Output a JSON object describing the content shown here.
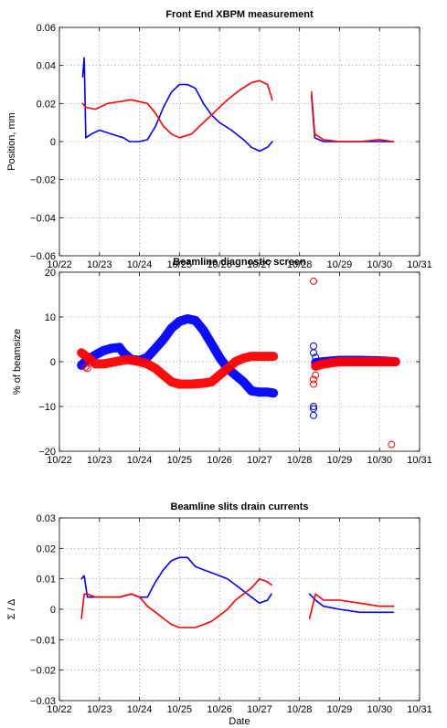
{
  "chart_data": [
    {
      "type": "line",
      "title": "Front End XBPM measurement",
      "xlabel": "",
      "ylabel": "Position, mm",
      "ylim": [
        -0.06,
        0.06
      ],
      "yticks": [
        -0.06,
        -0.04,
        -0.02,
        0,
        0.02,
        0.04,
        0.06
      ],
      "ytick_labels": [
        "−0.06",
        "−0.04",
        "−0.02",
        "0",
        "0.02",
        "0.04",
        "0.06"
      ],
      "xlim": [
        22,
        31
      ],
      "xticks": [
        22,
        23,
        24,
        25,
        26,
        27,
        28,
        29,
        30,
        31
      ],
      "xtick_labels": [
        "10/22",
        "10/23",
        "10/24",
        "10/25",
        "10/26",
        "10/27",
        "10/28",
        "10/29",
        "10/30",
        "10/31"
      ],
      "grid": true,
      "series": [
        {
          "color": "#0000ff",
          "segments": [
            [
              [
                22.58,
                0.034
              ],
              [
                22.62,
                0.044
              ],
              [
                22.66,
                0.002
              ],
              [
                22.8,
                0.004
              ],
              [
                23.0,
                0.006
              ],
              [
                23.3,
                0.004
              ],
              [
                23.6,
                0.002
              ],
              [
                23.75,
                0.0
              ],
              [
                24.0,
                0.0
              ],
              [
                24.2,
                0.001
              ],
              [
                24.4,
                0.008
              ],
              [
                24.6,
                0.018
              ],
              [
                24.8,
                0.026
              ],
              [
                25.0,
                0.03
              ],
              [
                25.2,
                0.03
              ],
              [
                25.4,
                0.028
              ],
              [
                25.6,
                0.02
              ],
              [
                25.8,
                0.014
              ],
              [
                26.0,
                0.01
              ],
              [
                26.3,
                0.006
              ],
              [
                26.6,
                0.001
              ],
              [
                26.8,
                -0.003
              ],
              [
                27.0,
                -0.005
              ],
              [
                27.2,
                -0.003
              ],
              [
                27.32,
                0.0
              ]
            ],
            [
              [
                28.3,
                0.024
              ],
              [
                28.38,
                0.002
              ],
              [
                28.6,
                0.0
              ],
              [
                29.0,
                0.0
              ],
              [
                29.5,
                0.0
              ],
              [
                30.0,
                0.0
              ],
              [
                30.35,
                0.0
              ]
            ]
          ]
        },
        {
          "color": "#ff0000",
          "segments": [
            [
              [
                22.58,
                0.02
              ],
              [
                22.66,
                0.018
              ],
              [
                22.9,
                0.017
              ],
              [
                23.2,
                0.02
              ],
              [
                23.5,
                0.021
              ],
              [
                23.8,
                0.022
              ],
              [
                24.0,
                0.021
              ],
              [
                24.2,
                0.02
              ],
              [
                24.4,
                0.015
              ],
              [
                24.6,
                0.008
              ],
              [
                24.8,
                0.004
              ],
              [
                25.0,
                0.002
              ],
              [
                25.3,
                0.004
              ],
              [
                25.6,
                0.01
              ],
              [
                25.9,
                0.016
              ],
              [
                26.2,
                0.022
              ],
              [
                26.5,
                0.027
              ],
              [
                26.8,
                0.031
              ],
              [
                27.0,
                0.032
              ],
              [
                27.2,
                0.03
              ],
              [
                27.32,
                0.022
              ]
            ],
            [
              [
                28.3,
                0.026
              ],
              [
                28.38,
                0.004
              ],
              [
                28.6,
                0.001
              ],
              [
                29.0,
                0.0
              ],
              [
                29.5,
                0.0
              ],
              [
                30.0,
                0.001
              ],
              [
                30.35,
                0.0
              ]
            ]
          ]
        }
      ]
    },
    {
      "type": "scatter",
      "title": "Beamline diagnostic screen",
      "xlabel": "",
      "ylabel": "% of beamsize",
      "ylim": [
        -20,
        20
      ],
      "yticks": [
        -20,
        -10,
        0,
        10,
        20
      ],
      "ytick_labels": [
        "−20",
        "−10",
        "0",
        "10",
        "20"
      ],
      "xlim": [
        22,
        31
      ],
      "xticks": [
        22,
        23,
        24,
        25,
        26,
        27,
        28,
        29,
        30,
        31
      ],
      "xtick_labels": [
        "10/22",
        "10/23",
        "10/24",
        "10/25",
        "10/26",
        "10/27",
        "10/28",
        "10/29",
        "10/30",
        "10/31"
      ],
      "grid": true,
      "series": [
        {
          "color": "#0000ff",
          "segments": [
            [
              [
                22.55,
                -0.8
              ],
              [
                22.7,
                0.5
              ],
              [
                22.9,
                1.5
              ],
              [
                23.1,
                2.5
              ],
              [
                23.3,
                3.0
              ],
              [
                23.5,
                3.2
              ],
              [
                23.6,
                2.0
              ],
              [
                23.8,
                0.5
              ],
              [
                24.0,
                0.3
              ],
              [
                24.2,
                1.0
              ],
              [
                24.4,
                3.0
              ],
              [
                24.6,
                5.0
              ],
              [
                24.8,
                7.5
              ],
              [
                25.0,
                9.0
              ],
              [
                25.2,
                9.6
              ],
              [
                25.4,
                9.2
              ],
              [
                25.6,
                7.0
              ],
              [
                25.8,
                4.0
              ],
              [
                26.0,
                1.0
              ],
              [
                26.2,
                -1.5
              ],
              [
                26.4,
                -3.0
              ],
              [
                26.6,
                -4.5
              ],
              [
                26.8,
                -6.5
              ],
              [
                27.0,
                -6.8
              ],
              [
                27.2,
                -6.8
              ],
              [
                27.35,
                -7.0
              ]
            ],
            [
              [
                28.4,
                -0.2
              ],
              [
                28.6,
                0.0
              ],
              [
                29.0,
                0.3
              ],
              [
                29.5,
                0.3
              ],
              [
                30.0,
                0.2
              ],
              [
                30.4,
                0.0
              ]
            ]
          ],
          "points": [
            [
              28.35,
              3.5
            ],
            [
              28.35,
              2.0
            ],
            [
              28.35,
              -10.0
            ],
            [
              28.35,
              -10.5
            ],
            [
              28.35,
              -12.0
            ],
            [
              28.4,
              -1.0
            ],
            [
              28.4,
              1.0
            ]
          ]
        },
        {
          "color": "#ff0000",
          "segments": [
            [
              [
                22.55,
                2.0
              ],
              [
                22.7,
                1.0
              ],
              [
                22.9,
                -0.5
              ],
              [
                23.1,
                -0.5
              ],
              [
                23.4,
                0.0
              ],
              [
                23.7,
                0.5
              ],
              [
                24.0,
                0.0
              ],
              [
                24.2,
                -0.5
              ],
              [
                24.4,
                -1.5
              ],
              [
                24.6,
                -3.0
              ],
              [
                24.8,
                -4.5
              ],
              [
                25.0,
                -5.0
              ],
              [
                25.3,
                -5.0
              ],
              [
                25.6,
                -4.8
              ],
              [
                25.8,
                -4.5
              ],
              [
                26.0,
                -3.0
              ],
              [
                26.2,
                -1.5
              ],
              [
                26.4,
                0.0
              ],
              [
                26.6,
                0.8
              ],
              [
                26.8,
                1.2
              ],
              [
                27.0,
                1.2
              ],
              [
                27.35,
                1.2
              ]
            ],
            [
              [
                28.4,
                -1.0
              ],
              [
                28.6,
                -0.5
              ],
              [
                29.0,
                0.0
              ],
              [
                29.5,
                0.0
              ],
              [
                30.0,
                0.0
              ],
              [
                30.4,
                0.0
              ]
            ]
          ],
          "points": [
            [
              22.65,
              -1.2
            ],
            [
              22.7,
              -1.5
            ],
            [
              28.35,
              18.0
            ],
            [
              28.35,
              -4.0
            ],
            [
              28.35,
              -5.0
            ],
            [
              28.4,
              -3.0
            ],
            [
              30.3,
              -18.5
            ]
          ]
        }
      ]
    },
    {
      "type": "line",
      "title": "Beamline slits drain currents",
      "xlabel": "Date",
      "ylabel": "Σ / Δ",
      "ylim": [
        -0.03,
        0.03
      ],
      "yticks": [
        -0.03,
        -0.02,
        -0.01,
        0,
        0.01,
        0.02,
        0.03
      ],
      "ytick_labels": [
        "−0.03",
        "−0.02",
        "−0.01",
        "0",
        "0.01",
        "0.02",
        "0.03"
      ],
      "xlim": [
        22,
        31
      ],
      "xticks": [
        22,
        23,
        24,
        25,
        26,
        27,
        28,
        29,
        30,
        31
      ],
      "xtick_labels": [
        "10/22",
        "10/23",
        "10/24",
        "10/25",
        "10/26",
        "10/27",
        "10/28",
        "10/29",
        "10/30",
        "10/31"
      ],
      "grid": true,
      "series": [
        {
          "color": "#0000ff",
          "segments": [
            [
              [
                22.55,
                0.01
              ],
              [
                22.62,
                0.011
              ],
              [
                22.7,
                0.004
              ],
              [
                22.9,
                0.004
              ],
              [
                23.2,
                0.004
              ],
              [
                23.5,
                0.004
              ],
              [
                23.8,
                0.005
              ],
              [
                24.0,
                0.004
              ],
              [
                24.2,
                0.004
              ],
              [
                24.4,
                0.009
              ],
              [
                24.6,
                0.013
              ],
              [
                24.8,
                0.016
              ],
              [
                25.0,
                0.017
              ],
              [
                25.2,
                0.017
              ],
              [
                25.4,
                0.014
              ],
              [
                25.6,
                0.013
              ],
              [
                25.8,
                0.012
              ],
              [
                26.0,
                0.011
              ],
              [
                26.2,
                0.01
              ],
              [
                26.4,
                0.008
              ],
              [
                26.6,
                0.006
              ],
              [
                26.8,
                0.004
              ],
              [
                27.0,
                0.002
              ],
              [
                27.2,
                0.003
              ],
              [
                27.3,
                0.005
              ]
            ],
            [
              [
                28.25,
                0.005
              ],
              [
                28.4,
                0.003
              ],
              [
                28.6,
                0.001
              ],
              [
                29.0,
                0.0
              ],
              [
                29.5,
                -0.001
              ],
              [
                30.0,
                -0.001
              ],
              [
                30.35,
                -0.001
              ]
            ]
          ]
        },
        {
          "color": "#ff0000",
          "segments": [
            [
              [
                22.55,
                -0.003
              ],
              [
                22.62,
                0.005
              ],
              [
                22.7,
                0.005
              ],
              [
                22.9,
                0.004
              ],
              [
                23.2,
                0.004
              ],
              [
                23.5,
                0.004
              ],
              [
                23.8,
                0.005
              ],
              [
                24.0,
                0.004
              ],
              [
                24.2,
                0.001
              ],
              [
                24.4,
                -0.001
              ],
              [
                24.6,
                -0.003
              ],
              [
                24.8,
                -0.005
              ],
              [
                25.0,
                -0.006
              ],
              [
                25.2,
                -0.006
              ],
              [
                25.4,
                -0.006
              ],
              [
                25.6,
                -0.005
              ],
              [
                25.8,
                -0.004
              ],
              [
                26.0,
                -0.002
              ],
              [
                26.2,
                0.0
              ],
              [
                26.4,
                0.003
              ],
              [
                26.6,
                0.005
              ],
              [
                26.8,
                0.007
              ],
              [
                27.0,
                0.01
              ],
              [
                27.2,
                0.009
              ],
              [
                27.3,
                0.008
              ]
            ],
            [
              [
                28.25,
                -0.003
              ],
              [
                28.4,
                0.005
              ],
              [
                28.6,
                0.003
              ],
              [
                29.0,
                0.003
              ],
              [
                29.5,
                0.002
              ],
              [
                30.0,
                0.001
              ],
              [
                30.35,
                0.001
              ]
            ]
          ]
        }
      ]
    }
  ]
}
